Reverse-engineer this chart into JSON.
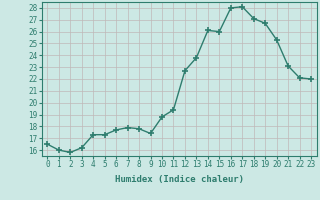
{
  "x": [
    0,
    1,
    2,
    3,
    4,
    5,
    6,
    7,
    8,
    9,
    10,
    11,
    12,
    13,
    14,
    15,
    16,
    17,
    18,
    19,
    20,
    21,
    22,
    23
  ],
  "y": [
    16.5,
    16.0,
    15.8,
    16.2,
    17.3,
    17.3,
    17.7,
    17.9,
    17.8,
    17.4,
    18.8,
    19.4,
    22.7,
    23.8,
    26.1,
    26.0,
    28.0,
    28.1,
    27.1,
    26.7,
    25.3,
    23.1,
    22.1,
    22.0
  ],
  "line_color": "#2e7d6e",
  "marker": "+",
  "markersize": 4,
  "bg_color": "#cce8e4",
  "grid_color": "#c0b8b8",
  "xlabel": "Humidex (Indice chaleur)",
  "xlim": [
    -0.5,
    23.5
  ],
  "ylim": [
    15.5,
    28.5
  ],
  "yticks": [
    16,
    17,
    18,
    19,
    20,
    21,
    22,
    23,
    24,
    25,
    26,
    27,
    28
  ],
  "xticks": [
    0,
    1,
    2,
    3,
    4,
    5,
    6,
    7,
    8,
    9,
    10,
    11,
    12,
    13,
    14,
    15,
    16,
    17,
    18,
    19,
    20,
    21,
    22,
    23
  ],
  "tick_label_size": 5.5,
  "xlabel_size": 6.5,
  "linewidth": 1.0
}
